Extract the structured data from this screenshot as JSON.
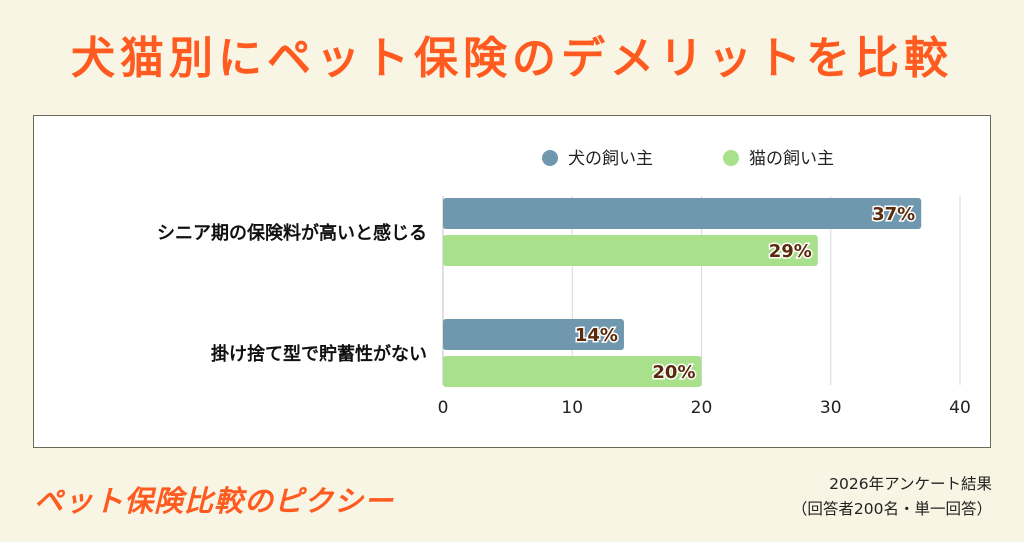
{
  "header": {
    "title": "犬猫別にペット保険のデメリットを比較"
  },
  "colors": {
    "dog": "#6f97ad",
    "cat": "#a8e08c",
    "accent": "#ff5a1f",
    "label_text": "#5a2a0a"
  },
  "chart_data": {
    "type": "bar",
    "orientation": "horizontal",
    "categories": [
      "シニア期の保険料が高いと感じる",
      "掛け捨て型で貯蓄性がない"
    ],
    "series": [
      {
        "name": "犬の飼い主",
        "values": [
          37,
          14
        ],
        "labels": [
          "37%",
          "14%"
        ]
      },
      {
        "name": "猫の飼い主",
        "values": [
          29,
          20
        ],
        "labels": [
          "29%",
          "20%"
        ]
      }
    ],
    "xlim": [
      0,
      40
    ],
    "xticks": [
      "0",
      "10",
      "20",
      "30",
      "40"
    ],
    "grid": true,
    "legend": "top"
  },
  "footer": {
    "brand": "ペット保険比較のピクシー",
    "survey_line1": "2026年アンケート結果",
    "survey_line2": "（回答者200名・単一回答）"
  }
}
